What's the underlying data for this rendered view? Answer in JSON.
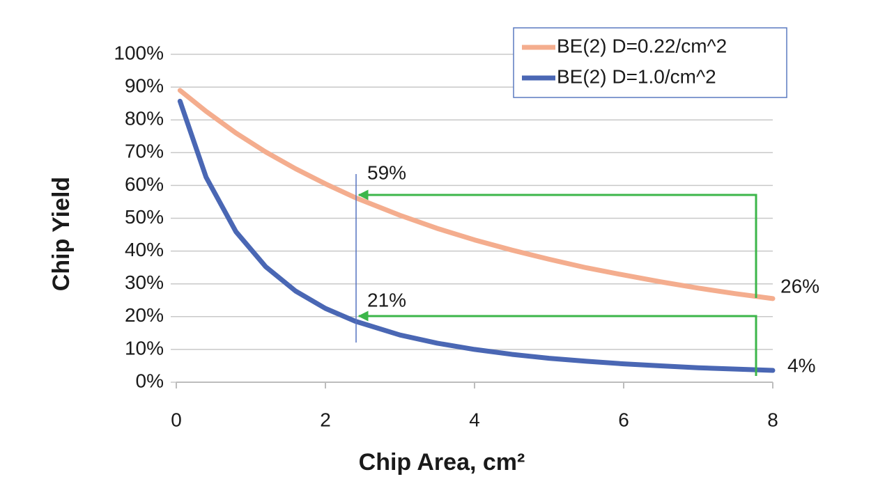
{
  "chart_data": {
    "type": "line",
    "x_label": "Chip Area, cm²",
    "y_label": "Chip Yield",
    "x": [
      0.05,
      0.4,
      0.8,
      1.2,
      1.6,
      2,
      2.4,
      3,
      3.5,
      4,
      4.5,
      5,
      5.5,
      6,
      6.5,
      7,
      7.5,
      8
    ],
    "series": [
      {
        "name": "BE(2) D=0.22/cm^2",
        "color": "#f4ad8e",
        "values": [
          89.0,
          82.6,
          76.0,
          70.2,
          65.1,
          60.5,
          56.3,
          50.9,
          46.9,
          43.4,
          40.3,
          37.5,
          34.9,
          32.7,
          30.6,
          28.7,
          27.0,
          25.5
        ]
      },
      {
        "name": "BE(2) D=1.0/cm^2",
        "color": "#4a67b4",
        "values": [
          85.7,
          62.5,
          45.9,
          35.2,
          27.8,
          22.5,
          18.6,
          14.4,
          11.9,
          10.0,
          8.5,
          7.3,
          6.4,
          5.6,
          5.0,
          4.4,
          4.0,
          3.6
        ]
      }
    ],
    "xlim": [
      0,
      8
    ],
    "xticks": [
      0,
      2,
      4,
      6,
      8
    ],
    "ylim": [
      0,
      100
    ],
    "yticks": [
      {
        "value": 0,
        "label": "0%"
      },
      {
        "value": 10,
        "label": "10%"
      },
      {
        "value": 20,
        "label": "20%"
      },
      {
        "value": 30,
        "label": "30%"
      },
      {
        "value": 40,
        "label": "40%"
      },
      {
        "value": 50,
        "label": "50%"
      },
      {
        "value": 60,
        "label": "60%"
      },
      {
        "value": 70,
        "label": "70%"
      },
      {
        "value": 80,
        "label": "80%"
      },
      {
        "value": 90,
        "label": "90%"
      },
      {
        "value": 100,
        "label": "100%"
      }
    ],
    "grid": true,
    "legend": "top-right",
    "annotations": [
      "59%",
      "21%",
      "26%",
      "4%"
    ]
  }
}
